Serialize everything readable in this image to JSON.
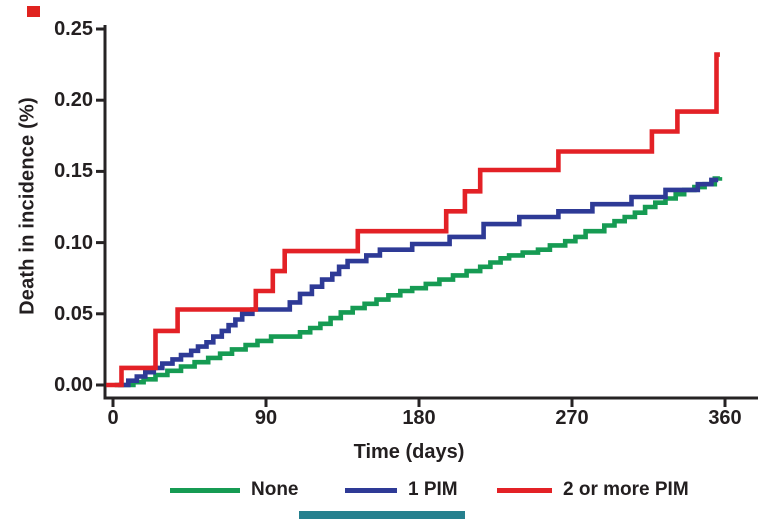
{
  "figure": {
    "background": "#ffffff",
    "text_color": "#231f20",
    "axis_color": "#262324",
    "corner_mark_color": "#e0231f",
    "bottom_bar_color": "#26808e"
  },
  "chart_data": {
    "type": "line",
    "style": "step-after",
    "title": "",
    "xlabel": "Time (days)",
    "ylabel": "Death in incidence (%)",
    "xlim": [
      0,
      360
    ],
    "ylim": [
      0,
      0.25
    ],
    "grid": false,
    "legend_position": "bottom",
    "xticks": [
      {
        "label": "0",
        "value": 0
      },
      {
        "label": "90",
        "value": 90
      },
      {
        "label": "180",
        "value": 180
      },
      {
        "label": "270",
        "value": 270
      },
      {
        "label": "360",
        "value": 360
      }
    ],
    "yticks": [
      {
        "label": "0.00",
        "value": 0.0
      },
      {
        "label": "0.05",
        "value": 0.05
      },
      {
        "label": "0.10",
        "value": 0.1
      },
      {
        "label": "0.15",
        "value": 0.15
      },
      {
        "label": "0.20",
        "value": 0.2
      },
      {
        "label": "0.25",
        "value": 0.25
      }
    ],
    "series": [
      {
        "name": "None",
        "color": "#169b53",
        "points": [
          [
            1,
            0
          ],
          [
            12,
            0.002
          ],
          [
            18,
            0.004
          ],
          [
            25,
            0.007
          ],
          [
            32,
            0.01
          ],
          [
            40,
            0.013
          ],
          [
            48,
            0.016
          ],
          [
            56,
            0.019
          ],
          [
            63,
            0.022
          ],
          [
            70,
            0.025
          ],
          [
            78,
            0.028
          ],
          [
            85,
            0.031
          ],
          [
            93,
            0.034
          ],
          [
            110,
            0.037
          ],
          [
            116,
            0.04
          ],
          [
            122,
            0.043
          ],
          [
            128,
            0.047
          ],
          [
            134,
            0.051
          ],
          [
            141,
            0.054
          ],
          [
            148,
            0.057
          ],
          [
            155,
            0.06
          ],
          [
            162,
            0.063
          ],
          [
            169,
            0.066
          ],
          [
            176,
            0.068
          ],
          [
            184,
            0.071
          ],
          [
            192,
            0.074
          ],
          [
            200,
            0.077
          ],
          [
            208,
            0.08
          ],
          [
            216,
            0.083
          ],
          [
            222,
            0.086
          ],
          [
            228,
            0.089
          ],
          [
            233,
            0.091
          ],
          [
            241,
            0.093
          ],
          [
            250,
            0.095
          ],
          [
            257,
            0.098
          ],
          [
            266,
            0.101
          ],
          [
            272,
            0.104
          ],
          [
            278,
            0.108
          ],
          [
            289,
            0.112
          ],
          [
            295,
            0.115
          ],
          [
            301,
            0.118
          ],
          [
            307,
            0.121
          ],
          [
            313,
            0.125
          ],
          [
            319,
            0.128
          ],
          [
            325,
            0.131
          ],
          [
            331,
            0.134
          ],
          [
            336,
            0.137
          ],
          [
            342,
            0.139
          ],
          [
            348,
            0.141
          ],
          [
            354,
            0.145
          ],
          [
            357,
            0.146
          ]
        ]
      },
      {
        "name": "1 PIM",
        "color": "#2e3a96",
        "points": [
          [
            3,
            0
          ],
          [
            9,
            0.003
          ],
          [
            14,
            0.006
          ],
          [
            19,
            0.009
          ],
          [
            24,
            0.012
          ],
          [
            29,
            0.015
          ],
          [
            35,
            0.018
          ],
          [
            40,
            0.021
          ],
          [
            46,
            0.024
          ],
          [
            50,
            0.027
          ],
          [
            55,
            0.03
          ],
          [
            59,
            0.034
          ],
          [
            64,
            0.038
          ],
          [
            68,
            0.042
          ],
          [
            72,
            0.046
          ],
          [
            76,
            0.05
          ],
          [
            82,
            0.053
          ],
          [
            104,
            0.058
          ],
          [
            110,
            0.064
          ],
          [
            117,
            0.069
          ],
          [
            123,
            0.074
          ],
          [
            129,
            0.078
          ],
          [
            133,
            0.083
          ],
          [
            138,
            0.087
          ],
          [
            149,
            0.091
          ],
          [
            157,
            0.095
          ],
          [
            176,
            0.099
          ],
          [
            198,
            0.104
          ],
          [
            218,
            0.113
          ],
          [
            239,
            0.118
          ],
          [
            262,
            0.122
          ],
          [
            282,
            0.127
          ],
          [
            305,
            0.132
          ],
          [
            325,
            0.137
          ],
          [
            344,
            0.141
          ],
          [
            352,
            0.144
          ],
          [
            356,
            0.144
          ]
        ]
      },
      {
        "name": "2 or more PIM",
        "color": "#e32126",
        "points": [
          [
            -4,
            0
          ],
          [
            5,
            0.012
          ],
          [
            25,
            0.038
          ],
          [
            38,
            0.053
          ],
          [
            84,
            0.066
          ],
          [
            94,
            0.08
          ],
          [
            101,
            0.094
          ],
          [
            144,
            0.108
          ],
          [
            196,
            0.122
          ],
          [
            207,
            0.136
          ],
          [
            216,
            0.151
          ],
          [
            262,
            0.164
          ],
          [
            317,
            0.178
          ],
          [
            332,
            0.192
          ],
          [
            355,
            0.232
          ],
          [
            357,
            0.232
          ]
        ]
      }
    ]
  }
}
